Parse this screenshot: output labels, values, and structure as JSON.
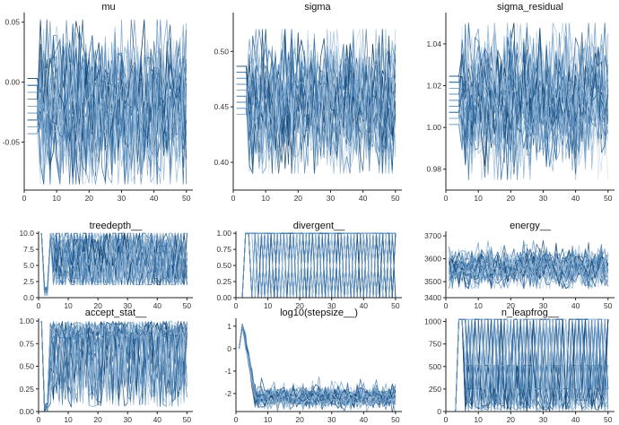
{
  "colors": {
    "chain_palette": [
      "#c6d7e7",
      "#9fbfdc",
      "#6f9fc8",
      "#3f7ab1",
      "#1f5a94",
      "#0b3b66"
    ],
    "axis": "#222222",
    "text": "#111111"
  },
  "chart_data": [
    {
      "type": "line",
      "title": "mu",
      "xlabel": "",
      "ylabel": "",
      "xlim": [
        0,
        52
      ],
      "ylim": [
        -0.09,
        0.058
      ],
      "xticks": [
        0,
        10,
        20,
        30,
        40,
        50
      ],
      "xtick_labels": [
        "0",
        "10",
        "20",
        "30",
        "40",
        "50"
      ],
      "yticks": [
        -0.05,
        0.0,
        0.05
      ],
      "ytick_labels": [
        "-0.05",
        "0.00",
        "0.05"
      ],
      "grid": false,
      "n_chains": 40,
      "iterations": 50,
      "series_summary": {
        "warmup_start": -0.02,
        "warmup_end_iter": 5,
        "mean": -0.02,
        "spread": 0.032,
        "min": -0.085,
        "max": 0.052
      }
    },
    {
      "type": "line",
      "title": "sigma",
      "xlabel": "",
      "ylabel": "",
      "xlim": [
        0,
        52
      ],
      "ylim": [
        0.375,
        0.535
      ],
      "xticks": [
        0,
        10,
        20,
        30,
        40,
        50
      ],
      "xtick_labels": [
        "0",
        "10",
        "20",
        "30",
        "40",
        "50"
      ],
      "yticks": [
        0.4,
        0.45,
        0.5
      ],
      "ytick_labels": [
        "0.40",
        "0.45",
        "0.50"
      ],
      "grid": false,
      "n_chains": 40,
      "iterations": 50,
      "series_summary": {
        "warmup_start": 0.465,
        "warmup_end_iter": 5,
        "mean": 0.455,
        "spread": 0.03,
        "min": 0.39,
        "max": 0.52
      }
    },
    {
      "type": "line",
      "title": "sigma_residual",
      "xlabel": "",
      "ylabel": "",
      "xlim": [
        0,
        52
      ],
      "ylim": [
        0.97,
        1.055
      ],
      "xticks": [
        0,
        10,
        20,
        30,
        40,
        50
      ],
      "xtick_labels": [
        "0",
        "10",
        "20",
        "30",
        "40",
        "50"
      ],
      "yticks": [
        0.98,
        1.0,
        1.02,
        1.04
      ],
      "ytick_labels": [
        "0.98",
        "1.00",
        "1.02",
        "1.04"
      ],
      "grid": false,
      "n_chains": 40,
      "iterations": 50,
      "series_summary": {
        "warmup_start": 1.013,
        "warmup_end_iter": 5,
        "mean": 1.013,
        "spread": 0.016,
        "min": 0.975,
        "max": 1.05
      }
    },
    {
      "type": "line",
      "title": "treedepth__",
      "xlabel": "",
      "ylabel": "",
      "xlim": [
        0,
        52
      ],
      "ylim": [
        0,
        10.3
      ],
      "xticks": [
        0,
        10,
        20,
        30,
        40,
        50
      ],
      "xtick_labels": [
        "0",
        "10",
        "20",
        "30",
        "40",
        "50"
      ],
      "yticks": [
        0,
        2.5,
        5,
        7.5,
        10
      ],
      "ytick_labels": [
        "0.0",
        "2.5",
        "5.0",
        "7.5",
        "10.0"
      ],
      "grid": false,
      "n_chains": 40,
      "iterations": 50,
      "series_summary": {
        "levels": [
          2,
          3,
          4,
          5,
          6,
          7,
          8,
          9,
          10
        ],
        "warmup_dip_to": 0,
        "warmup_end_iter": 5
      }
    },
    {
      "type": "line",
      "title": "divergent__",
      "xlabel": "",
      "ylabel": "",
      "xlim": [
        0,
        52
      ],
      "ylim": [
        0,
        1.03
      ],
      "xticks": [
        0,
        10,
        20,
        30,
        40,
        50
      ],
      "xtick_labels": [
        "0",
        "10",
        "20",
        "30",
        "40",
        "50"
      ],
      "yticks": [
        0,
        0.25,
        0.5,
        0.75,
        1.0
      ],
      "ytick_labels": [
        "0.00",
        "0.25",
        "0.50",
        "0.75",
        "1.00"
      ],
      "grid": false,
      "n_chains": 40,
      "iterations": 50,
      "series_summary": {
        "values": [
          0,
          1
        ],
        "switch_to_one_iter": 3
      }
    },
    {
      "type": "line",
      "title": "energy__",
      "xlabel": "",
      "ylabel": "",
      "xlim": [
        0,
        52
      ],
      "ylim": [
        3430,
        3720
      ],
      "xticks": [
        0,
        10,
        20,
        30,
        40,
        50
      ],
      "xtick_labels": [
        "0",
        "10",
        "20",
        "30",
        "40",
        "50"
      ],
      "yticks": [
        3400,
        3500,
        3600,
        3700
      ],
      "ytick_labels": [
        "3400",
        "3500",
        "3600",
        "3700"
      ],
      "grid": false,
      "n_chains": 40,
      "iterations": 50,
      "series_summary": {
        "mean": 3560,
        "spread": 40,
        "min": 3470,
        "max": 3680
      }
    },
    {
      "type": "line",
      "title": "accept_stat__",
      "xlabel": "",
      "ylabel": "",
      "xlim": [
        0,
        52
      ],
      "ylim": [
        0,
        1.03
      ],
      "xticks": [
        0,
        10,
        20,
        30,
        40,
        50
      ],
      "xtick_labels": [
        "0",
        "10",
        "20",
        "30",
        "40",
        "50"
      ],
      "yticks": [
        0,
        0.25,
        0.5,
        0.75,
        1.0
      ],
      "ytick_labels": [
        "0.00",
        "0.25",
        "0.50",
        "0.75",
        "1.00"
      ],
      "grid": false,
      "n_chains": 40,
      "iterations": 50,
      "series_summary": {
        "typical_min": 0.05,
        "typical_max": 1.0,
        "warmup_dip_to": 0.0,
        "warmup_end_iter": 4
      }
    },
    {
      "type": "line",
      "title": "log10(stepsize__)",
      "xlabel": "",
      "ylabel": "",
      "xlim": [
        0,
        52
      ],
      "ylim": [
        -2.8,
        1.35
      ],
      "xticks": [
        0,
        10,
        20,
        30,
        40,
        50
      ],
      "xtick_labels": [
        "0",
        "10",
        "20",
        "30",
        "40",
        "50"
      ],
      "yticks": [
        -2,
        -1,
        0,
        1
      ],
      "ytick_labels": [
        "-2",
        "-1",
        "0",
        "1"
      ],
      "grid": false,
      "n_chains": 40,
      "iterations": 50,
      "series_summary": {
        "start": 0.0,
        "peak": 1.1,
        "peak_iter": 2,
        "settle_mean": -2.15,
        "settle_spread": 0.3,
        "settle_iter": 6
      }
    },
    {
      "type": "line",
      "title": "n_leapfrog__",
      "xlabel": "",
      "ylabel": "",
      "xlim": [
        0,
        52
      ],
      "ylim": [
        0,
        1035
      ],
      "xticks": [
        0,
        10,
        20,
        30,
        40,
        50
      ],
      "xtick_labels": [
        "0",
        "10",
        "20",
        "30",
        "40",
        "50"
      ],
      "yticks": [
        0,
        250,
        500,
        750,
        1000
      ],
      "ytick_labels": [
        "0",
        "250",
        "500",
        "750",
        "1000"
      ],
      "grid": false,
      "n_chains": 40,
      "iterations": 50,
      "series_summary": {
        "levels": [
          3,
          7,
          15,
          31,
          63,
          127,
          255,
          511,
          1023
        ],
        "warmup_end_iter": 5
      }
    }
  ]
}
